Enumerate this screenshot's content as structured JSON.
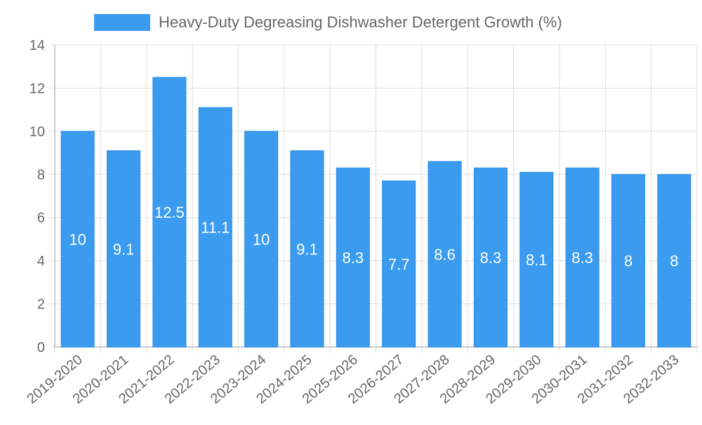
{
  "colors": {
    "bar": "#3a9bef",
    "bar_border": "#2b8ee6",
    "grid": "#dddddd",
    "axis": "#bbbbbb",
    "text": "#666666",
    "value_text": "#ffffff"
  },
  "chart_data": {
    "type": "bar",
    "title": "",
    "legend": {
      "label": "Heavy-Duty Degreasing Dishwasher Detergent Growth (%)",
      "position": "top-center"
    },
    "categories": [
      "2019-2020",
      "2020-2021",
      "2021-2022",
      "2022-2023",
      "2023-2024",
      "2024-2025",
      "2025-2026",
      "2026-2027",
      "2027-2028",
      "2028-2029",
      "2029-2030",
      "2030-2031",
      "2031-2032",
      "2032-2033"
    ],
    "series": [
      {
        "name": "Heavy-Duty Degreasing Dishwasher Detergent Growth (%)",
        "values": [
          10,
          9.1,
          12.5,
          11.1,
          10,
          9.1,
          8.3,
          7.7,
          8.6,
          8.3,
          8.1,
          8.3,
          8,
          8
        ]
      }
    ],
    "value_labels": [
      "10",
      "9.1",
      "12.5",
      "11.1",
      "10",
      "9.1",
      "8.3",
      "7.7",
      "8.6",
      "8.3",
      "8.1",
      "8.3",
      "8",
      "8"
    ],
    "y_ticks": [
      "0",
      "2",
      "4",
      "6",
      "8",
      "10",
      "12",
      "14"
    ],
    "xlabel": "",
    "ylabel": "",
    "ylim": [
      0,
      14
    ],
    "grid": true
  }
}
